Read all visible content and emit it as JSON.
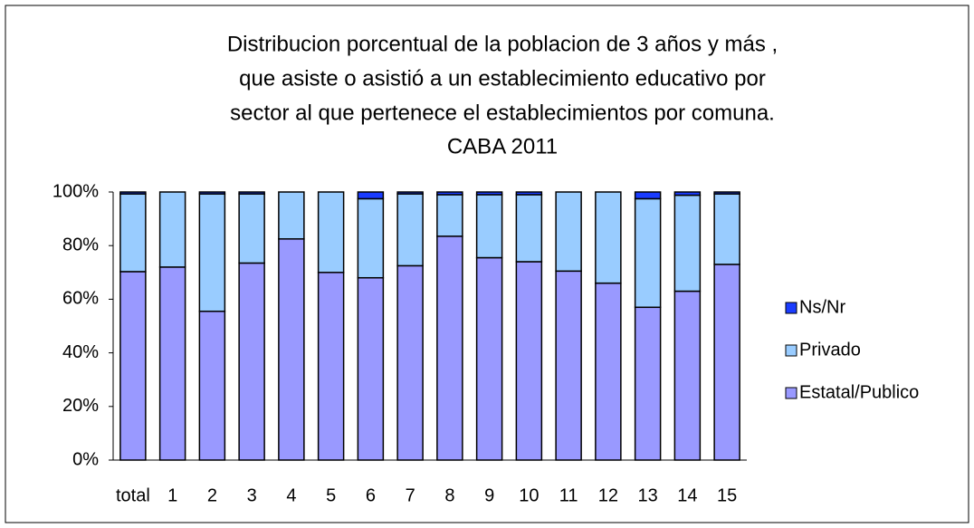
{
  "chart_data": {
    "type": "stacked-bar",
    "title": [
      "Distribucion porcentual de la poblacion de 3 años y más ,",
      "que asiste o asistió a un establecimiento educativo por",
      "sector al que pertenece el establecimientos por comuna.",
      "CABA 2011"
    ],
    "categories": [
      "total",
      "1",
      "2",
      "3",
      "4",
      "5",
      "6",
      "7",
      "8",
      "9",
      "10",
      "11",
      "12",
      "13",
      "14",
      "15"
    ],
    "series": [
      {
        "name": "Estatal/Publico",
        "color": "#9999ff",
        "values": [
          70.3,
          72,
          55.5,
          73.5,
          82.5,
          70,
          68,
          72.5,
          83.5,
          75.5,
          74,
          70.5,
          66,
          57,
          63,
          73
        ]
      },
      {
        "name": "Privado",
        "color": "#99ccff",
        "values": [
          29,
          28,
          43.8,
          25.8,
          17.5,
          30,
          29.5,
          26.8,
          15.5,
          23.5,
          25,
          29.5,
          34,
          40.5,
          35.8,
          26.3
        ]
      },
      {
        "name": "Ns/Nr",
        "color": "#1a3cff",
        "values": [
          0.7,
          0,
          0.7,
          0.7,
          0,
          0,
          2.5,
          0.7,
          1,
          1,
          1,
          0,
          0,
          2.5,
          1.2,
          0.7
        ]
      }
    ],
    "ylim": [
      0,
      100
    ],
    "yticks": [
      {
        "value": 0,
        "label": "0%"
      },
      {
        "value": 20,
        "label": "20%"
      },
      {
        "value": 40,
        "label": "40%"
      },
      {
        "value": 60,
        "label": "60%"
      },
      {
        "value": 80,
        "label": "80%"
      },
      {
        "value": 100,
        "label": "100%"
      }
    ],
    "legend": "right"
  }
}
